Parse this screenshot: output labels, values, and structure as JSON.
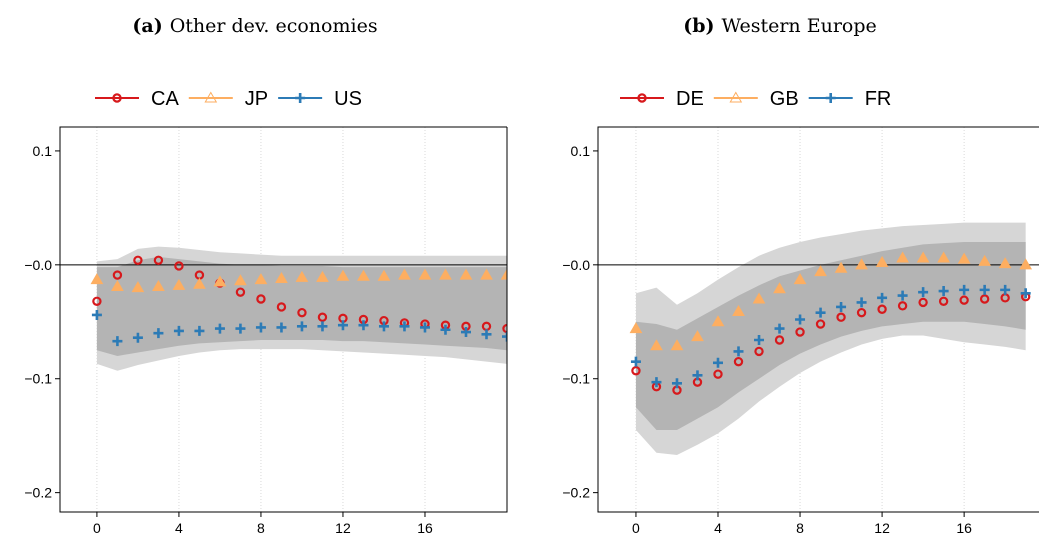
{
  "chart_data": [
    {
      "type": "scatter",
      "panel_label": "(a)",
      "title": "Other dev. economies",
      "x": [
        0,
        1,
        2,
        3,
        4,
        5,
        6,
        7,
        8,
        9,
        10,
        11,
        12,
        13,
        14,
        15,
        16,
        17,
        18,
        19,
        20
      ],
      "xlim": [
        -1.8,
        20
      ],
      "xticks": [
        0,
        4,
        8,
        12,
        16
      ],
      "ylim": [
        -0.217,
        0.121
      ],
      "yticks": [
        {
          "value": 0.1,
          "label": "0.1"
        },
        {
          "value": 0,
          "label": "−0.0"
        },
        {
          "value": -0.1,
          "label": "−0.1"
        },
        {
          "value": -0.2,
          "label": "−0.2"
        }
      ],
      "reference_line": 0,
      "grid": true,
      "bands": [
        {
          "color": "#d6d6d6",
          "upper": [
            0.003,
            0.005,
            0.014,
            0.016,
            0.015,
            0.013,
            0.011,
            0.01,
            0.009,
            0.008,
            0.008,
            0.008,
            0.008,
            0.008,
            0.008,
            0.008,
            0.008,
            0.008,
            0.008,
            0.008,
            0.008
          ],
          "lower": [
            -0.087,
            -0.093,
            -0.088,
            -0.084,
            -0.08,
            -0.077,
            -0.075,
            -0.074,
            -0.074,
            -0.074,
            -0.074,
            -0.075,
            -0.076,
            -0.077,
            -0.078,
            -0.079,
            -0.08,
            -0.081,
            -0.083,
            -0.085,
            -0.087
          ]
        },
        {
          "color": "#b4b4b4",
          "upper": [
            -0.002,
            -0.002,
            0.004,
            0.007,
            0.005,
            0.003,
            0.001,
            0.0,
            0.0,
            -0.001,
            -0.001,
            -0.001,
            -0.002,
            -0.002,
            -0.002,
            -0.002,
            -0.002,
            -0.002,
            -0.002,
            -0.002,
            -0.002
          ],
          "lower": [
            -0.075,
            -0.08,
            -0.077,
            -0.074,
            -0.071,
            -0.069,
            -0.068,
            -0.067,
            -0.066,
            -0.066,
            -0.066,
            -0.066,
            -0.067,
            -0.067,
            -0.068,
            -0.069,
            -0.07,
            -0.071,
            -0.072,
            -0.073,
            -0.075
          ]
        }
      ],
      "series": [
        {
          "name": "CA",
          "color": "#d7191c",
          "marker": "circle",
          "values": [
            -0.032,
            -0.009,
            0.004,
            0.004,
            -0.001,
            -0.009,
            -0.016,
            -0.024,
            -0.03,
            -0.037,
            -0.042,
            -0.046,
            -0.047,
            -0.048,
            -0.049,
            -0.051,
            -0.052,
            -0.053,
            -0.054,
            -0.054,
            -0.056
          ]
        },
        {
          "name": "JP",
          "color": "#fdae61",
          "marker": "triangle",
          "values": [
            -0.013,
            -0.019,
            -0.02,
            -0.019,
            -0.018,
            -0.017,
            -0.015,
            -0.014,
            -0.013,
            -0.012,
            -0.011,
            -0.011,
            -0.01,
            -0.01,
            -0.01,
            -0.009,
            -0.009,
            -0.009,
            -0.009,
            -0.009,
            -0.009
          ]
        },
        {
          "name": "US",
          "color": "#2c7bb6",
          "marker": "plus",
          "values": [
            -0.044,
            -0.067,
            -0.064,
            -0.06,
            -0.058,
            -0.058,
            -0.056,
            -0.056,
            -0.055,
            -0.055,
            -0.054,
            -0.054,
            -0.053,
            -0.053,
            -0.054,
            -0.054,
            -0.055,
            -0.057,
            -0.059,
            -0.061,
            -0.063
          ]
        }
      ]
    },
    {
      "type": "scatter",
      "panel_label": "(b)",
      "title": "Western Europe",
      "x": [
        0,
        1,
        2,
        3,
        4,
        5,
        6,
        7,
        8,
        9,
        10,
        11,
        12,
        13,
        14,
        15,
        16,
        17,
        18,
        19
      ],
      "xlim": [
        -1.85,
        19.65
      ],
      "xticks": [
        0,
        4,
        8,
        12,
        16
      ],
      "ylim": [
        -0.217,
        0.121
      ],
      "yticks": [
        {
          "value": 0.1,
          "label": "0.1"
        },
        {
          "value": 0,
          "label": "−0.0"
        },
        {
          "value": -0.1,
          "label": "−0.1"
        },
        {
          "value": -0.2,
          "label": "−0.2"
        }
      ],
      "reference_line": 0,
      "grid": true,
      "bands": [
        {
          "color": "#d6d6d6",
          "upper": [
            -0.025,
            -0.02,
            -0.035,
            -0.025,
            -0.013,
            -0.002,
            0.008,
            0.015,
            0.02,
            0.024,
            0.027,
            0.03,
            0.032,
            0.034,
            0.035,
            0.036,
            0.037,
            0.037,
            0.037,
            0.037
          ],
          "lower": [
            -0.145,
            -0.165,
            -0.167,
            -0.158,
            -0.148,
            -0.135,
            -0.12,
            -0.107,
            -0.095,
            -0.085,
            -0.077,
            -0.07,
            -0.065,
            -0.062,
            -0.062,
            -0.065,
            -0.068,
            -0.07,
            -0.072,
            -0.075
          ]
        },
        {
          "color": "#b4b4b4",
          "upper": [
            -0.05,
            -0.052,
            -0.057,
            -0.047,
            -0.037,
            -0.027,
            -0.018,
            -0.01,
            -0.005,
            0.0,
            0.004,
            0.008,
            0.012,
            0.015,
            0.018,
            0.019,
            0.02,
            0.02,
            0.02,
            0.02
          ],
          "lower": [
            -0.125,
            -0.145,
            -0.145,
            -0.135,
            -0.125,
            -0.112,
            -0.1,
            -0.088,
            -0.078,
            -0.07,
            -0.063,
            -0.058,
            -0.054,
            -0.052,
            -0.05,
            -0.05,
            -0.05,
            -0.052,
            -0.054,
            -0.057
          ]
        }
      ],
      "series": [
        {
          "name": "DE",
          "color": "#d7191c",
          "marker": "circle",
          "values": [
            -0.093,
            -0.107,
            -0.11,
            -0.103,
            -0.096,
            -0.085,
            -0.076,
            -0.066,
            -0.059,
            -0.052,
            -0.046,
            -0.042,
            -0.039,
            -0.036,
            -0.033,
            -0.032,
            -0.031,
            -0.03,
            -0.029,
            -0.028
          ]
        },
        {
          "name": "GB",
          "color": "#fdae61",
          "marker": "triangle",
          "values": [
            -0.056,
            -0.071,
            -0.071,
            -0.063,
            -0.05,
            -0.041,
            -0.03,
            -0.021,
            -0.013,
            -0.006,
            -0.003,
            0.0,
            0.002,
            0.006,
            0.006,
            0.006,
            0.005,
            0.003,
            0.001,
            0.0
          ]
        },
        {
          "name": "FR",
          "color": "#2c7bb6",
          "marker": "plus",
          "values": [
            -0.085,
            -0.103,
            -0.104,
            -0.097,
            -0.086,
            -0.076,
            -0.066,
            -0.056,
            -0.048,
            -0.042,
            -0.037,
            -0.033,
            -0.029,
            -0.027,
            -0.024,
            -0.023,
            -0.022,
            -0.022,
            -0.022,
            -0.025
          ]
        }
      ]
    }
  ]
}
